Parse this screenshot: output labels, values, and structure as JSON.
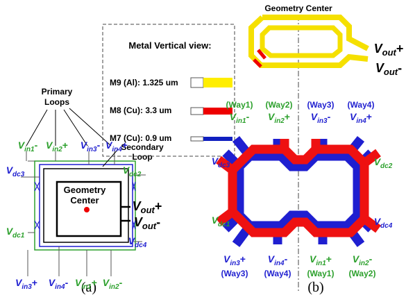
{
  "panel_a": {
    "caption": "(a)",
    "primary_loops": [
      "Primary",
      "Loops"
    ],
    "secondary_loop": [
      "Secondary",
      "Loop"
    ],
    "geometry_center": [
      "Geometry",
      "Center"
    ],
    "labels": [
      {
        "base": "V",
        "sub": "in1",
        "sign": "-"
      },
      {
        "base": "V",
        "sub": "in2",
        "sign": "+"
      },
      {
        "base": "V",
        "sub": "in3",
        "sign": "-"
      },
      {
        "base": "V",
        "sub": "in4",
        "sign": "+"
      },
      {
        "base": "V",
        "sub": "in3",
        "sign": "+"
      },
      {
        "base": "V",
        "sub": "in4",
        "sign": "-"
      },
      {
        "base": "V",
        "sub": "in1",
        "sign": "+"
      },
      {
        "base": "V",
        "sub": "in2",
        "sign": "-"
      },
      {
        "base": "V",
        "sub": "dc3"
      },
      {
        "base": "V",
        "sub": "dc2"
      },
      {
        "base": "V",
        "sub": "dc1"
      },
      {
        "base": "V",
        "sub": "dc4"
      },
      {
        "base": "V",
        "sub": "out",
        "sign": "+"
      },
      {
        "base": "V",
        "sub": "out",
        "sign": "-"
      }
    ],
    "metal_view": {
      "title": "Metal Vertical view:",
      "rows": [
        "M9 (Al): 1.325 um",
        "M8 (Cu): 3.3 um",
        "M7 (Cu): 0.9 um"
      ]
    }
  },
  "panel_b": {
    "caption": "(b)",
    "geometry_center": "Geometry Center",
    "ports": [
      {
        "way": "(Way1)",
        "v": {
          "base": "V",
          "sub": "in1",
          "sign": "-"
        }
      },
      {
        "way": "(Way2)",
        "v": {
          "base": "V",
          "sub": "in2",
          "sign": "+"
        }
      },
      {
        "way": "(Way3)",
        "v": {
          "base": "V",
          "sub": "in3",
          "sign": "-"
        }
      },
      {
        "way": "(Way4)",
        "v": {
          "base": "V",
          "sub": "in4",
          "sign": "+"
        }
      },
      {
        "way": "(Way3)",
        "v": {
          "base": "V",
          "sub": "in3",
          "sign": "+"
        }
      },
      {
        "way": "(Way4)",
        "v": {
          "base": "V",
          "sub": "in4",
          "sign": "-"
        }
      },
      {
        "way": "(Way1)",
        "v": {
          "base": "V",
          "sub": "in1",
          "sign": "+"
        }
      },
      {
        "way": "(Way2)",
        "v": {
          "base": "V",
          "sub": "in2",
          "sign": "-"
        }
      }
    ],
    "labels": [
      {
        "base": "V",
        "sub": "dc3"
      },
      {
        "base": "V",
        "sub": "dc2"
      },
      {
        "base": "V",
        "sub": "dc1"
      },
      {
        "base": "V",
        "sub": "dc4"
      },
      {
        "base": "V",
        "sub": "out",
        "sign": "+"
      },
      {
        "base": "V",
        "sub": "out",
        "sign": "-"
      }
    ]
  }
}
